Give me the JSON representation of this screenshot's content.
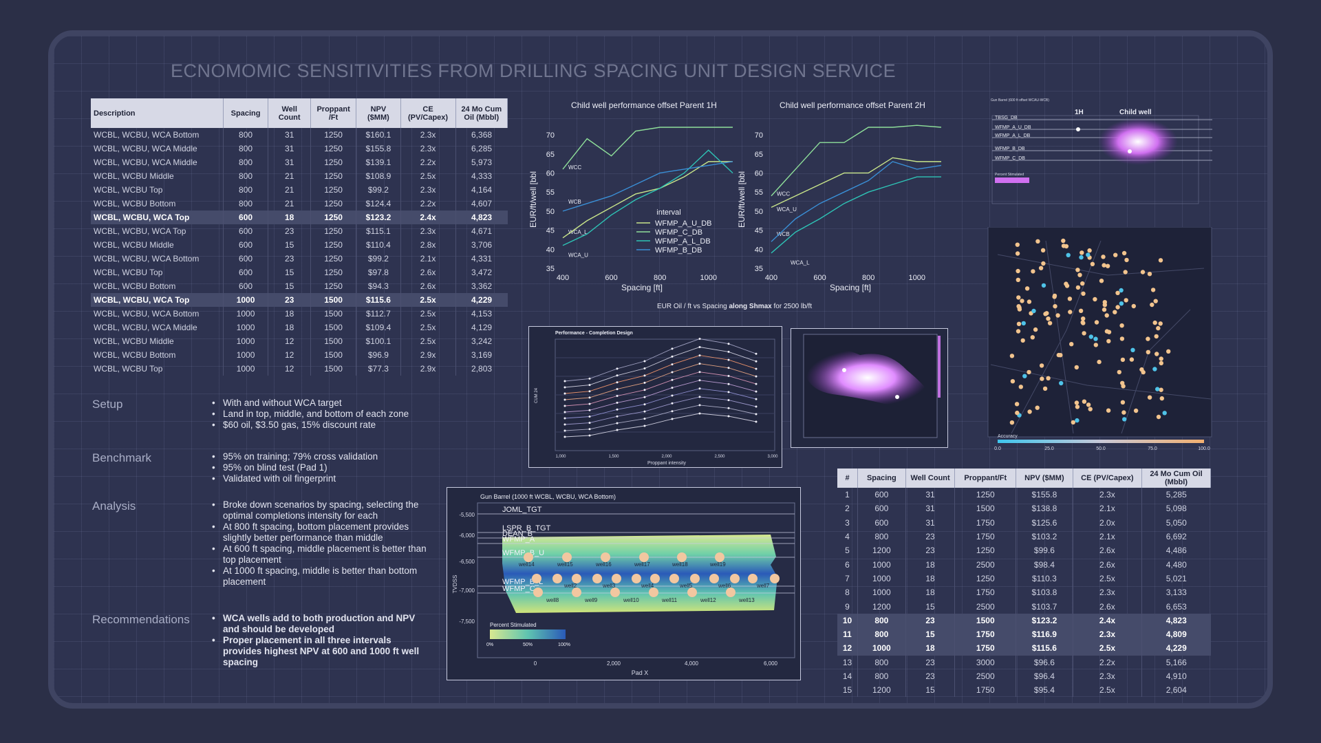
{
  "title": "ECNOMOMIC SENSITIVITIES  FROM DRILLING SPACING UNIT DESIGN SERVICE",
  "left_table": {
    "headers": [
      "Description",
      "Spacing",
      "Well Count",
      "Proppant /Ft",
      "NPV ($MM)",
      "CE (PV/Capex)",
      "24 Mo Cum Oil (Mbbl)"
    ],
    "rows": [
      {
        "cells": [
          "WCBL, WCBU, WCA Bottom",
          "800",
          "31",
          "1250",
          "$160.1",
          "2.3x",
          "6,368"
        ],
        "hl": false
      },
      {
        "cells": [
          "WCBL, WCBU, WCA Middle",
          "800",
          "31",
          "1250",
          "$155.8",
          "2.3x",
          "6,285"
        ],
        "hl": false
      },
      {
        "cells": [
          "WCBL, WCBU, WCA Middle",
          "800",
          "31",
          "1250",
          "$139.1",
          "2.2x",
          "5,973"
        ],
        "hl": false
      },
      {
        "cells": [
          "WCBL, WCBU Middle",
          "800",
          "21",
          "1250",
          "$108.9",
          "2.5x",
          "4,333"
        ],
        "hl": false
      },
      {
        "cells": [
          "WCBL, WCBU Top",
          "800",
          "21",
          "1250",
          "$99.2",
          "2.3x",
          "4,164"
        ],
        "hl": false
      },
      {
        "cells": [
          "WCBL, WCBU Bottom",
          "800",
          "21",
          "1250",
          "$124.4",
          "2.2x",
          "4,607"
        ],
        "hl": false
      },
      {
        "cells": [
          "WCBL, WCBU, WCA Top",
          "600",
          "18",
          "1250",
          "$123.2",
          "2.4x",
          "4,823"
        ],
        "hl": true
      },
      {
        "cells": [
          "WCBL, WCBU, WCA Top",
          "600",
          "23",
          "1250",
          "$115.1",
          "2.3x",
          "4,671"
        ],
        "hl": false
      },
      {
        "cells": [
          "WCBL, WCBU Middle",
          "600",
          "15",
          "1250",
          "$110.4",
          "2.8x",
          "3,706"
        ],
        "hl": false
      },
      {
        "cells": [
          "WCBL, WCBU, WCA Bottom",
          "600",
          "23",
          "1250",
          "$99.2",
          "2.1x",
          "4,331"
        ],
        "hl": false
      },
      {
        "cells": [
          "WCBL, WCBU Top",
          "600",
          "15",
          "1250",
          "$97.8",
          "2.6x",
          "3,472"
        ],
        "hl": false
      },
      {
        "cells": [
          "WCBL, WCBU Bottom",
          "600",
          "15",
          "1250",
          "$94.3",
          "2.6x",
          "3,362"
        ],
        "hl": false
      },
      {
        "cells": [
          "WCBL, WCBU, WCA Top",
          "1000",
          "23",
          "1500",
          "$115.6",
          "2.5x",
          "4,229"
        ],
        "hl": true
      },
      {
        "cells": [
          "WCBL, WCBU, WCA Bottom",
          "1000",
          "18",
          "1500",
          "$112.7",
          "2.5x",
          "4,153"
        ],
        "hl": false
      },
      {
        "cells": [
          "WCBL, WCBU, WCA Middle",
          "1000",
          "18",
          "1500",
          "$109.4",
          "2.5x",
          "4,129"
        ],
        "hl": false
      },
      {
        "cells": [
          "WCBL, WCBU Middle",
          "1000",
          "12",
          "1500",
          "$100.1",
          "2.5x",
          "3,242"
        ],
        "hl": false
      },
      {
        "cells": [
          "WCBL, WCBU Bottom",
          "1000",
          "12",
          "1500",
          "$96.9",
          "2.9x",
          "3,169"
        ],
        "hl": false
      },
      {
        "cells": [
          "WCBL, WCBU Top",
          "1000",
          "12",
          "1500",
          "$77.3",
          "2.9x",
          "2,803"
        ],
        "hl": false
      }
    ]
  },
  "sections": {
    "setup": {
      "label": "Setup",
      "items": [
        "With and without WCA target",
        "Land in top, middle, and bottom of each zone",
        "$60 oil, $3.50 gas, 15% discount rate"
      ]
    },
    "benchmark": {
      "label": "Benchmark",
      "items": [
        "95% on training; 79% cross validation",
        "95% on blind test (Pad 1)",
        "Validated with oil fingerprint"
      ]
    },
    "analysis": {
      "label": "Analysis",
      "items": [
        "Broke down scenarios by spacing, selecting the optimal completions intensity for each",
        "At 800 ft spacing, bottom placement provides slightly better performance than middle",
        "At 600 ft spacing, middle placement is better than top placement",
        "At 1000 ft spacing, middle is better than bottom placement"
      ]
    },
    "recommendations": {
      "label": "Recommendations",
      "items": [
        "WCA wells add to both production and NPV and should be developed",
        "Proper placement in all three intervals provides highest NPV at 600 and 1000 ft well spacing"
      ]
    }
  },
  "chart_common": {
    "caption_pre": "EUR Oil / ft vs Spacing ",
    "caption_bold": "along Shmax",
    "caption_post": " for 2500 lb/ft",
    "legend_title": "interval",
    "colors": [
      "#c9e68a",
      "#8fe09a",
      "#2ec4b6",
      "#3a8fd6"
    ]
  },
  "chart_data": [
    {
      "type": "line",
      "title": "Child well performance offset Parent 1H",
      "xlabel": "Spacing [ft]",
      "ylabel": "EUR/ft/well [bbl",
      "xlim": [
        400,
        1100
      ],
      "ylim": [
        35,
        72
      ],
      "xticks": [
        "400",
        "600",
        "800",
        "1000"
      ],
      "yticks": [
        "35",
        "40",
        "45",
        "50",
        "55",
        "60",
        "65",
        "70"
      ],
      "annotations": [
        "WCC",
        "WCB",
        "WCA_L",
        "WCA_U"
      ],
      "legend": [
        "WFMP_A_U_DB",
        "WFMP_C_DB",
        "WFMP_A_L_DB",
        "WFMP_B_DB"
      ],
      "series": [
        {
          "name": "WFMP_A_U_DB",
          "x": [
            400,
            500,
            600,
            700,
            800,
            900,
            1000,
            1100
          ],
          "y": [
            43,
            47.5,
            51,
            54.5,
            56,
            59,
            63,
            63
          ]
        },
        {
          "name": "WFMP_C_DB",
          "x": [
            400,
            500,
            600,
            700,
            800,
            900,
            1000,
            1100
          ],
          "y": [
            61,
            69,
            64.5,
            71,
            72,
            72,
            72,
            72
          ]
        },
        {
          "name": "WFMP_A_L_DB",
          "x": [
            400,
            500,
            600,
            700,
            800,
            900,
            1000,
            1100
          ],
          "y": [
            41,
            44,
            49,
            53,
            56,
            60,
            66,
            60
          ]
        },
        {
          "name": "WFMP_B_DB",
          "x": [
            400,
            500,
            600,
            700,
            800,
            900,
            1000,
            1100
          ],
          "y": [
            50,
            52,
            54,
            57,
            60,
            61,
            62,
            63
          ]
        }
      ]
    },
    {
      "type": "line",
      "title": "Child well performance offset Parent 2H",
      "xlabel": "Spacing [ft]",
      "ylabel": "EUR/ft/well [bbl",
      "xlim": [
        400,
        1100
      ],
      "ylim": [
        35,
        72
      ],
      "xticks": [
        "400",
        "600",
        "800",
        "1000"
      ],
      "yticks": [
        "35",
        "40",
        "45",
        "50",
        "55",
        "60",
        "65",
        "70"
      ],
      "annotations": [
        "WCC",
        "WCA_U",
        "WCB",
        "WCA_L"
      ],
      "series": [
        {
          "name": "WFMP_A_U_DB",
          "x": [
            400,
            500,
            600,
            700,
            800,
            900,
            1000,
            1100
          ],
          "y": [
            51,
            54,
            57,
            60,
            60,
            64,
            63,
            63
          ]
        },
        {
          "name": "WFMP_C_DB",
          "x": [
            400,
            500,
            600,
            700,
            800,
            900,
            1000,
            1100
          ],
          "y": [
            54,
            61,
            68,
            68,
            72,
            72,
            72.5,
            72
          ]
        },
        {
          "name": "WFMP_A_L_DB",
          "x": [
            400,
            500,
            600,
            700,
            800,
            900,
            1000,
            1100
          ],
          "y": [
            39,
            44.5,
            48,
            52,
            55,
            57,
            59,
            59
          ]
        },
        {
          "name": "WFMP_B_DB",
          "x": [
            400,
            500,
            600,
            700,
            800,
            900,
            1000,
            1100
          ],
          "y": [
            42,
            48,
            52,
            55,
            58,
            63,
            61,
            62
          ]
        }
      ]
    }
  ],
  "perf_chart": {
    "title": "Performance - Completion Design",
    "xlabel": "Proppant intensity",
    "ylabel": "CUM 24",
    "xticks": [
      "1,000",
      "1,500",
      "2,000",
      "2,500",
      "3,000"
    ]
  },
  "gun_barrel": {
    "title": "Gun Barrel (1000 ft WCBL, WCBU, WCA Bottom)",
    "xlabel": "Pad X",
    "ylabel": "TVDSS",
    "yticks": [
      "-5,500",
      "-6,000",
      "-6,500",
      "-7,000",
      "-7,500"
    ],
    "xticks": [
      "0",
      "2,000",
      "4,000",
      "6,000"
    ],
    "zones": [
      "JOML_TGT",
      "LSPR_B_TGT",
      "DEAN_B",
      "WFMP_A",
      "WFMP_B_U",
      "WFMP_B_L",
      "WFMP_C"
    ],
    "wells_upper": [
      "well14",
      "well15",
      "well16",
      "well17",
      "well18",
      "well19"
    ],
    "wells_middle": [
      "well2",
      "well3",
      "well4",
      "well5",
      "well6",
      "well7"
    ],
    "wells_lower": [
      "well8",
      "well9",
      "well10",
      "well11",
      "well12",
      "well13"
    ],
    "legend_title": "Percent Stimulated",
    "legend_ticks": [
      "0%",
      "50%",
      "100%"
    ]
  },
  "top_right_mini": {
    "title": "Gun Barrel (600 ft offset WCAU-WCB)",
    "labels": [
      "1H",
      "Child well"
    ],
    "zones": [
      "TBSG_DB",
      "WFMP_A_U_DB",
      "WFMP_A_L_DB",
      "WFMP_B_DB",
      "WFMP_C_DB"
    ],
    "legend": "Percent Stimulated"
  },
  "map": {
    "legend_title": "Accuracy",
    "legend_ticks": [
      "0.0",
      "25.0",
      "50.0",
      "75.0",
      "100.0"
    ]
  },
  "right_table": {
    "headers": [
      "#",
      "Spacing",
      "Well Count",
      "Proppant/Ft",
      "NPV ($MM)",
      "CE (PV/Capex)",
      "24 Mo Cum Oil (Mbbl)"
    ],
    "rows": [
      {
        "cells": [
          "1",
          "600",
          "31",
          "1250",
          "$155.8",
          "2.3x",
          "5,285"
        ],
        "hl": false
      },
      {
        "cells": [
          "2",
          "600",
          "31",
          "1500",
          "$138.8",
          "2.1x",
          "5,098"
        ],
        "hl": false
      },
      {
        "cells": [
          "3",
          "600",
          "31",
          "1750",
          "$125.6",
          "2.0x",
          "5,050"
        ],
        "hl": false
      },
      {
        "cells": [
          "4",
          "800",
          "23",
          "1750",
          "$103.2",
          "2.1x",
          "6,692"
        ],
        "hl": false
      },
      {
        "cells": [
          "5",
          "1200",
          "23",
          "1250",
          "$99.6",
          "2.6x",
          "4,486"
        ],
        "hl": false
      },
      {
        "cells": [
          "6",
          "1000",
          "18",
          "2500",
          "$98.4",
          "2.6x",
          "4,480"
        ],
        "hl": false
      },
      {
        "cells": [
          "7",
          "1000",
          "18",
          "1250",
          "$110.3",
          "2.5x",
          "5,021"
        ],
        "hl": false
      },
      {
        "cells": [
          "8",
          "1000",
          "18",
          "1750",
          "$103.8",
          "2.3x",
          "3,133"
        ],
        "hl": false
      },
      {
        "cells": [
          "9",
          "1200",
          "15",
          "2500",
          "$103.7",
          "2.6x",
          "6,653"
        ],
        "hl": false
      },
      {
        "cells": [
          "10",
          "800",
          "23",
          "1500",
          "$123.2",
          "2.4x",
          "4,823"
        ],
        "hl": true
      },
      {
        "cells": [
          "11",
          "800",
          "15",
          "1750",
          "$116.9",
          "2.3x",
          "4,809"
        ],
        "hl": true
      },
      {
        "cells": [
          "12",
          "1000",
          "18",
          "1750",
          "$115.6",
          "2.5x",
          "4,229"
        ],
        "hl": true
      },
      {
        "cells": [
          "13",
          "800",
          "23",
          "3000",
          "$96.6",
          "2.2x",
          "5,166"
        ],
        "hl": false
      },
      {
        "cells": [
          "14",
          "800",
          "23",
          "2500",
          "$96.4",
          "2.3x",
          "4,910"
        ],
        "hl": false
      },
      {
        "cells": [
          "15",
          "1200",
          "15",
          "1750",
          "$95.4",
          "2.5x",
          "2,604"
        ],
        "hl": false
      }
    ]
  }
}
